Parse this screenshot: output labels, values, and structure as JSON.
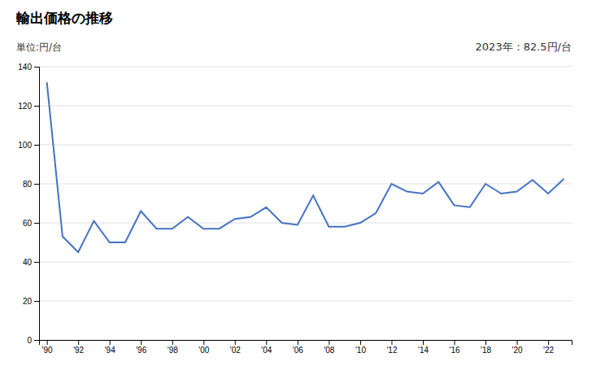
{
  "chart_data": {
    "type": "line",
    "title": "輸出価格の推移",
    "ylabel": "単位:円/台",
    "annotation": "2023年：82.5円/台",
    "x": [
      1990,
      1991,
      1992,
      1993,
      1994,
      1995,
      1996,
      1997,
      1998,
      1999,
      2000,
      2001,
      2002,
      2003,
      2004,
      2005,
      2006,
      2007,
      2008,
      2009,
      2010,
      2011,
      2012,
      2013,
      2014,
      2015,
      2016,
      2017,
      2018,
      2019,
      2020,
      2021,
      2022,
      2023
    ],
    "values": [
      132,
      53,
      45,
      61,
      50,
      50,
      66,
      57,
      57,
      63,
      57,
      57,
      62,
      63,
      68,
      60,
      59,
      74,
      58,
      58,
      60,
      65,
      80,
      76,
      75,
      81,
      69,
      68,
      80,
      75,
      76,
      82,
      75,
      82.5
    ],
    "color": "#4472C4",
    "xlim": [
      1989.5,
      2023.5
    ],
    "xticks": [
      {
        "value": 1990,
        "label": "'90"
      },
      {
        "value": 1992,
        "label": "'92"
      },
      {
        "value": 1994,
        "label": "'94"
      },
      {
        "value": 1996,
        "label": "'96"
      },
      {
        "value": 1998,
        "label": "'98"
      },
      {
        "value": 2000,
        "label": "'00"
      },
      {
        "value": 2002,
        "label": "'02"
      },
      {
        "value": 2004,
        "label": "'04"
      },
      {
        "value": 2006,
        "label": "'06"
      },
      {
        "value": 2008,
        "label": "'08"
      },
      {
        "value": 2010,
        "label": "'10"
      },
      {
        "value": 2012,
        "label": "'12"
      },
      {
        "value": 2014,
        "label": "'14"
      },
      {
        "value": 2016,
        "label": "'16"
      },
      {
        "value": 2018,
        "label": "'18"
      },
      {
        "value": 2020,
        "label": "'20"
      },
      {
        "value": 2022,
        "label": "'22"
      }
    ],
    "ylim": [
      0,
      140
    ],
    "yticks": [
      0,
      20,
      40,
      60,
      80,
      100,
      120,
      140
    ],
    "grid": true
  }
}
